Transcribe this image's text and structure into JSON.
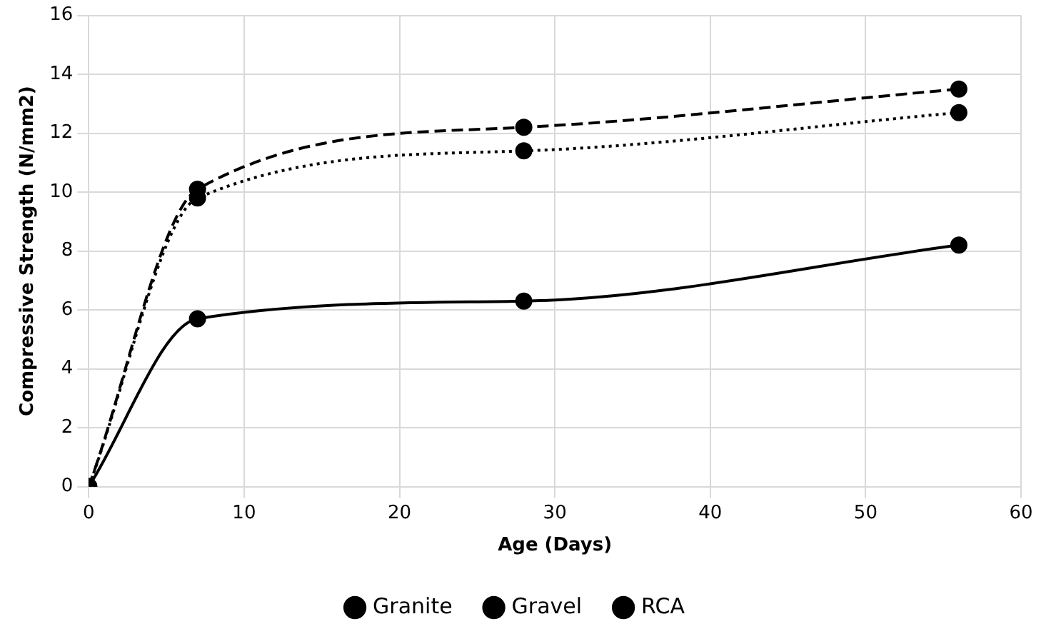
{
  "chart_data": {
    "type": "line",
    "xlabel": "Age (Days)",
    "ylabel": "Compressive Strength (N/mm2)",
    "x": [
      0,
      7,
      28,
      56
    ],
    "series": [
      {
        "name": "Granite",
        "color": "#000000",
        "values": [
          0,
          10.1,
          12.2,
          13.5
        ],
        "line_style": "dashed"
      },
      {
        "name": "Gravel",
        "color": "#000000",
        "values": [
          0,
          9.8,
          11.4,
          12.7
        ],
        "line_style": "dotted"
      },
      {
        "name": "RCA",
        "color": "#000000",
        "values": [
          0,
          5.7,
          6.3,
          8.2
        ],
        "line_style": "solid"
      }
    ],
    "xlim": [
      0,
      60
    ],
    "xticks": [
      0,
      10,
      20,
      30,
      40,
      50,
      60
    ],
    "ylim": [
      0,
      16
    ],
    "yticks": [
      0,
      2,
      4,
      6,
      8,
      10,
      12,
      14,
      16
    ],
    "grid": true,
    "legend": "bottom",
    "marker": "circle"
  }
}
